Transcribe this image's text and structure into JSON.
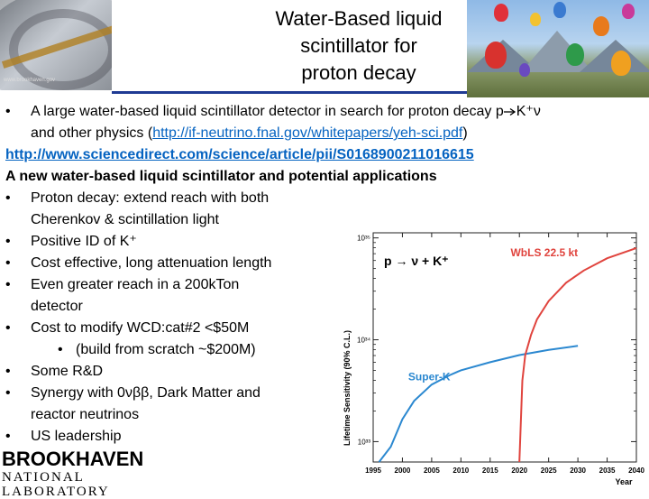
{
  "slide": {
    "title_lines": [
      "Water-Based liquid",
      "scintillator for",
      "proton decay"
    ],
    "header_left_credit": "www.brookhaven.gov",
    "bullet1_text": "A large water-based liquid scintillator detector in search for proton decay p",
    "bullet1_symbol": "K⁺ν",
    "bullet1_line2_prefix": "and other physics (",
    "bullet1_link": "http://if-neutrino.fnal.gov/whitepapers/yeh-sci.pdf",
    "bullet1_line2_suffix": ")",
    "ref_link": "http://www.sciencedirect.com/science/article/pii/S0168900211016615",
    "ref_title": "A new water-based liquid scintillator and potential applications",
    "bullets": [
      "Proton decay: extend reach with both",
      "Cherenkov & scintillation light",
      "Positive ID of K⁺",
      "Cost effective, long attenuation length",
      "Even greater reach in a 200kTon",
      "detector",
      "Cost to modify WCD:cat#2 <$50M",
      "(build from scratch ~$200M)",
      "Some R&D",
      "Synergy with 0νββ, Dark Matter and",
      "reactor neutrinos",
      "US leadership"
    ],
    "bullet_char": "•",
    "logo_line1": "BROOKHAVEN",
    "logo_line2": "NATIONAL LABORATORY"
  },
  "chart_data": {
    "type": "line",
    "title": "",
    "xlabel": "Year",
    "ylabel": "Lifetime Sensitivity (90% C.L.)",
    "annotation": "p → ν + K⁺",
    "xlim": [
      1995,
      2040
    ],
    "ylim_log10": [
      32.8,
      35.05
    ],
    "y_scale": "log",
    "x_ticks": [
      "1995",
      "2000",
      "2005",
      "2010",
      "2015",
      "2020",
      "2025",
      "2030",
      "2035",
      "2040"
    ],
    "y_ticks": [
      "10³³",
      "10³⁴",
      "10³⁵"
    ],
    "grid": false,
    "series": [
      {
        "name": "Super-K",
        "color": "#2b88d0",
        "x": [
          1996,
          1998,
          2000,
          2002,
          2005,
          2008,
          2010,
          2015,
          2020,
          2025,
          2030
        ],
        "log10_y": [
          32.45,
          32.95,
          33.22,
          33.4,
          33.56,
          33.65,
          33.7,
          33.78,
          33.85,
          33.9,
          33.94
        ]
      },
      {
        "name": "WbLS 22.5 kt",
        "color": "#e0443e",
        "x": [
          2020,
          2020.5,
          2021,
          2022,
          2023,
          2025,
          2028,
          2031,
          2035,
          2040
        ],
        "log10_y": [
          32.7,
          33.6,
          33.85,
          34.05,
          34.2,
          34.38,
          34.56,
          34.68,
          34.8,
          34.9
        ]
      }
    ]
  }
}
